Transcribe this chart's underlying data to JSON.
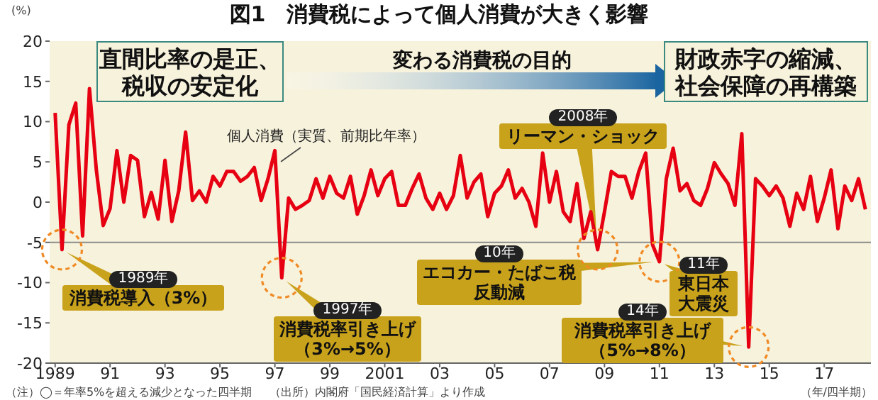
{
  "chart_data": {
    "type": "line",
    "title": "図1　消費税によって個人消費が大きく影響",
    "ylabel": "(%)",
    "xlabel": "（年/四半期）",
    "x": [
      1989,
      1989.25,
      1989.5,
      1989.75,
      1990,
      1990.25,
      1990.5,
      1990.75,
      1991,
      1991.25,
      1991.5,
      1991.75,
      1992,
      1992.25,
      1992.5,
      1992.75,
      1993,
      1993.25,
      1993.5,
      1993.75,
      1994,
      1994.25,
      1994.5,
      1994.75,
      1995,
      1995.25,
      1995.5,
      1995.75,
      1996,
      1996.25,
      1996.5,
      1996.75,
      1997,
      1997.25,
      1997.5,
      1997.75,
      1998,
      1998.25,
      1998.5,
      1998.75,
      1999,
      1999.25,
      1999.5,
      1999.75,
      2000,
      2000.25,
      2000.5,
      2000.75,
      2001,
      2001.25,
      2001.5,
      2001.75,
      2002,
      2002.25,
      2002.5,
      2002.75,
      2003,
      2003.25,
      2003.5,
      2003.75,
      2004,
      2004.25,
      2004.5,
      2004.75,
      2005,
      2005.25,
      2005.5,
      2005.75,
      2006,
      2006.25,
      2006.5,
      2006.75,
      2007,
      2007.25,
      2007.5,
      2007.75,
      2008,
      2008.25,
      2008.5,
      2008.75,
      2009,
      2009.25,
      2009.5,
      2009.75,
      2010,
      2010.25,
      2010.5,
      2010.75,
      2011,
      2011.25,
      2011.5,
      2011.75,
      2012,
      2012.25,
      2012.5,
      2012.75,
      2013,
      2013.25,
      2013.5,
      2013.75,
      2014,
      2014.25,
      2014.5,
      2014.75,
      2015,
      2015.25,
      2015.5,
      2015.75,
      2016,
      2016.25,
      2016.5,
      2016.75,
      2017,
      2017.25,
      2017.5,
      2017.75,
      2018,
      2018.25,
      2018.5
    ],
    "series": [
      {
        "name": "個人消費（実質、前期比年率）",
        "color": "#e60012",
        "values": [
          11.1,
          -5.9,
          9.6,
          12.3,
          -4.2,
          14.1,
          4.0,
          -2.9,
          -0.8,
          6.4,
          0,
          5.8,
          5.2,
          -1.8,
          1.2,
          -2.1,
          5.2,
          -2.4,
          1.4,
          8.7,
          0.2,
          1.4,
          0,
          3.2,
          2.0,
          3.8,
          3.8,
          2.6,
          3.2,
          4.3,
          0.2,
          2.9,
          6.4,
          -9.4,
          0.5,
          -0.9,
          -0.4,
          0.2,
          2.9,
          0.5,
          3.2,
          1.1,
          0.5,
          3.2,
          -1.5,
          0.8,
          4.0,
          0.8,
          2.9,
          3.8,
          -0.4,
          -0.4,
          1.7,
          3.5,
          0.5,
          -0.9,
          1.1,
          -0.9,
          0.8,
          5.8,
          0.5,
          2.5,
          3.5,
          -1.8,
          1.1,
          2.0,
          4.0,
          0.5,
          1.7,
          0,
          -3.0,
          6.1,
          0,
          3.8,
          -1.2,
          -2.4,
          2.3,
          -4.5,
          -1.2,
          -5.9,
          -1.2,
          3.8,
          3.2,
          3.2,
          0.5,
          3.8,
          6.1,
          -5.3,
          -7.4,
          2.9,
          6.7,
          1.4,
          2.3,
          0.2,
          -0.4,
          1.7,
          4.9,
          3.5,
          2.3,
          -0.4,
          8.5,
          -18.0,
          2.9,
          2.0,
          0.8,
          2.0,
          0.5,
          -3.0,
          1.1,
          -0.9,
          3.2,
          -2.4,
          0.5,
          4.0,
          -3.3,
          2.0,
          0.2,
          2.9,
          -0.9
        ]
      }
    ],
    "xlim": [
      1988.8,
      2018.7
    ],
    "xticks": [
      1989,
      {
        "value": 1991,
        "label": "91"
      },
      {
        "value": 1993,
        "label": "93"
      },
      {
        "value": 1995,
        "label": "95"
      },
      {
        "value": 1997,
        "label": "97"
      },
      {
        "value": 1999,
        "label": "99"
      },
      2001,
      {
        "value": 2003,
        "label": "03"
      },
      {
        "value": 2005,
        "label": "05"
      },
      {
        "value": 2007,
        "label": "07"
      },
      {
        "value": 2009,
        "label": "09"
      },
      {
        "value": 2011,
        "label": "11"
      },
      {
        "value": 2013,
        "label": "13"
      },
      {
        "value": 2015,
        "label": "15"
      },
      {
        "value": 2017,
        "label": "17"
      }
    ],
    "ylim": [
      -20,
      20
    ],
    "yticks": [
      -20,
      -15,
      -10,
      -5,
      0,
      5,
      10,
      15,
      20
    ],
    "ref_lines": [
      {
        "axis": "y",
        "value": -5,
        "color": "#8c8c8c"
      }
    ],
    "legend": false,
    "annotations": [
      "直間比率の是正、税収の安定化",
      "変わる消費税の目的",
      "財政赤字の縮減、社会保障の再構築",
      "1989年",
      {
        "text": "消費税導入（3%）",
        "x": 1989.25,
        "y": -5.9
      },
      "1997年",
      {
        "text": "消費税率引き上げ（3%→5%）",
        "x": 1997.25,
        "y": -9.4
      },
      "2008年",
      {
        "text": "リーマン・ショック",
        "x": 2008.75,
        "y": -5.9
      },
      "10年",
      {
        "text": "エコカー・たばこ税反動減",
        "x": 2011,
        "y": -7.4
      },
      "11年",
      {
        "text": "東日本大震災",
        "x": 2011,
        "y": -7.4
      },
      "14年",
      {
        "text": "消費税率引き上げ（5%→8%）",
        "x": 2014.25,
        "y": -18.0
      },
      "（注）◯＝年率5%を超える減少となった四半期",
      "（出所）内閣府「国民経済計算」より作成"
    ]
  }
}
